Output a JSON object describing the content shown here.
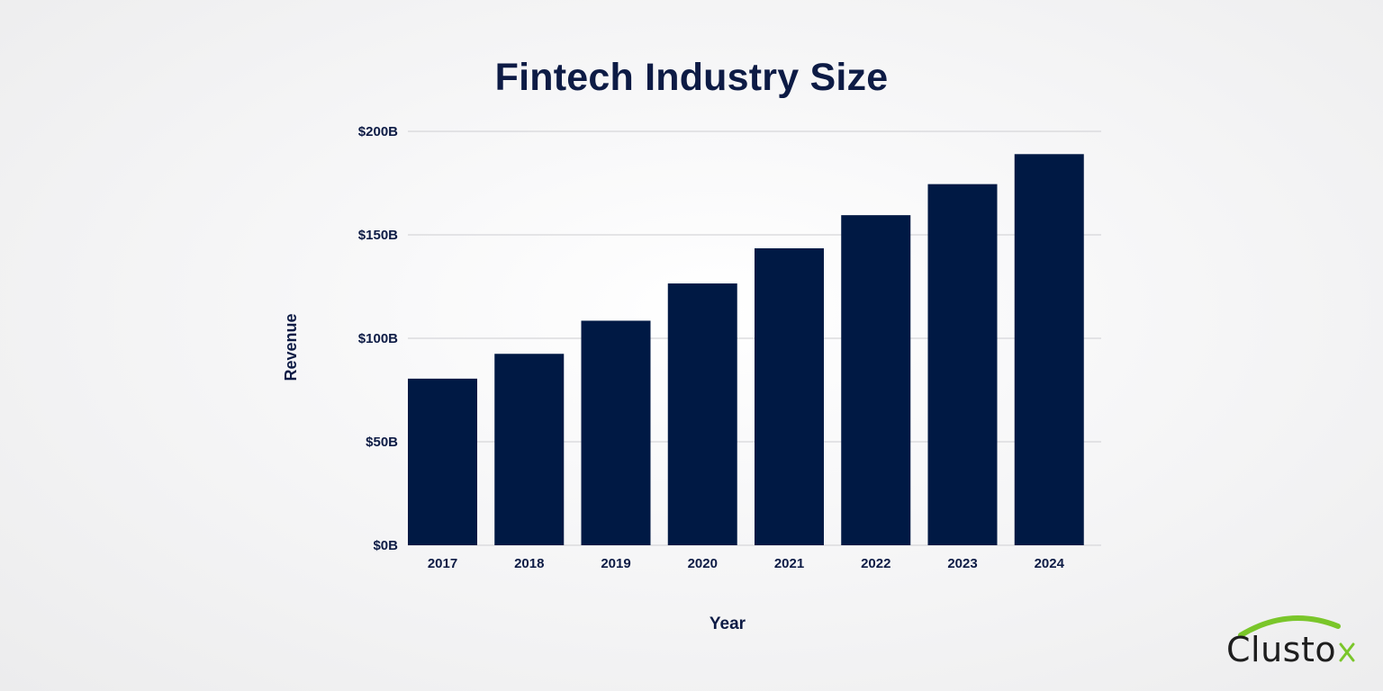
{
  "chart_data": {
    "type": "bar",
    "title": "Fintech Industry Size",
    "xlabel": "Year",
    "ylabel": "Revenue",
    "categories": [
      "2017",
      "2018",
      "2019",
      "2020",
      "2021",
      "2022",
      "2023",
      "2024"
    ],
    "values": [
      80.5,
      92.5,
      108.5,
      126.5,
      143.5,
      159.5,
      174.5,
      189
    ],
    "ylim": [
      0,
      200
    ],
    "yticks": [
      0,
      50,
      100,
      150,
      200
    ],
    "ytick_labels": [
      "$0B",
      "$50B",
      "$100B",
      "$150B",
      "$200B"
    ],
    "grid": true,
    "bar_color": "#001944",
    "grid_color": "#d6d6d9",
    "text_color": "#0d1b45"
  },
  "logo": {
    "text": "Clusto",
    "x_mark": "x",
    "accent_color": "#7ac62a"
  }
}
